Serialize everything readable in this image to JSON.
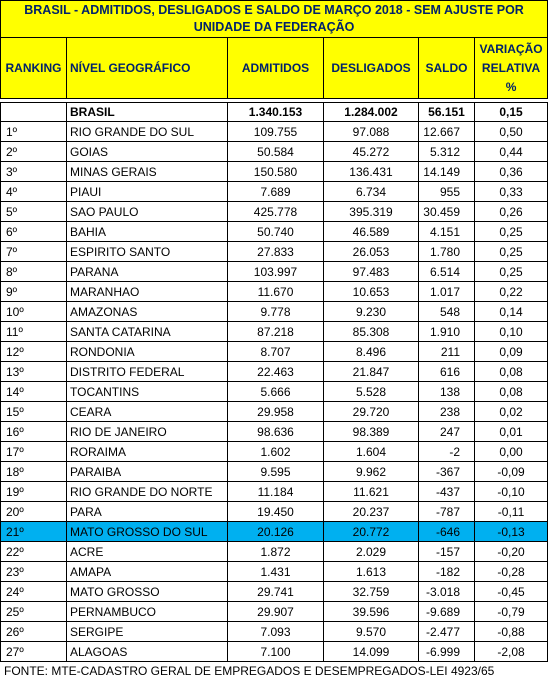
{
  "title": "BRASIL - ADMITIDOS, DESLIGADOS E SALDO DE MARÇO 2018 - SEM AJUSTE       POR UNIDADE DA FEDERAÇÃO",
  "headers": {
    "ranking": "RANKING",
    "nivel": "NÍVEL GEOGRÁFICO",
    "admitidos": "ADMITIDOS",
    "desligados": "DESLIGADOS",
    "saldo": "SALDO",
    "variacao": "VARIAÇÃO RELATIVA %"
  },
  "brasil": {
    "rank": "",
    "name": "BRASIL",
    "admitidos": "1.340.153",
    "desligados": "1.284.002",
    "saldo": "56.151",
    "variacao": "0,15"
  },
  "rows": [
    {
      "rank": "1º",
      "name": "RIO GRANDE DO SUL",
      "admitidos": "109.755",
      "desligados": "97.088",
      "saldo": "12.667",
      "variacao": "0,50"
    },
    {
      "rank": "2º",
      "name": "GOIAS",
      "admitidos": "50.584",
      "desligados": "45.272",
      "saldo": "5.312",
      "variacao": "0,44"
    },
    {
      "rank": "3º",
      "name": "MINAS GERAIS",
      "admitidos": "150.580",
      "desligados": "136.431",
      "saldo": "14.149",
      "variacao": "0,36"
    },
    {
      "rank": "4º",
      "name": "PIAUI",
      "admitidos": "7.689",
      "desligados": "6.734",
      "saldo": "955",
      "variacao": "0,33"
    },
    {
      "rank": "5º",
      "name": "SAO PAULO",
      "admitidos": "425.778",
      "desligados": "395.319",
      "saldo": "30.459",
      "variacao": "0,26"
    },
    {
      "rank": "6º",
      "name": "BAHIA",
      "admitidos": "50.740",
      "desligados": "46.589",
      "saldo": "4.151",
      "variacao": "0,25"
    },
    {
      "rank": "7º",
      "name": "ESPIRITO SANTO",
      "admitidos": "27.833",
      "desligados": "26.053",
      "saldo": "1.780",
      "variacao": "0,25"
    },
    {
      "rank": "8º",
      "name": "PARANA",
      "admitidos": "103.997",
      "desligados": "97.483",
      "saldo": "6.514",
      "variacao": "0,25"
    },
    {
      "rank": "9º",
      "name": "MARANHAO",
      "admitidos": "11.670",
      "desligados": "10.653",
      "saldo": "1.017",
      "variacao": "0,22"
    },
    {
      "rank": "10º",
      "name": "AMAZONAS",
      "admitidos": "9.778",
      "desligados": "9.230",
      "saldo": "548",
      "variacao": "0,14"
    },
    {
      "rank": "11º",
      "name": "SANTA CATARINA",
      "admitidos": "87.218",
      "desligados": "85.308",
      "saldo": "1.910",
      "variacao": "0,10"
    },
    {
      "rank": "12º",
      "name": "RONDONIA",
      "admitidos": "8.707",
      "desligados": "8.496",
      "saldo": "211",
      "variacao": "0,09"
    },
    {
      "rank": "13º",
      "name": "DISTRITO FEDERAL",
      "admitidos": "22.463",
      "desligados": "21.847",
      "saldo": "616",
      "variacao": "0,08"
    },
    {
      "rank": "14º",
      "name": "TOCANTINS",
      "admitidos": "5.666",
      "desligados": "5.528",
      "saldo": "138",
      "variacao": "0,08"
    },
    {
      "rank": "15º",
      "name": "CEARA",
      "admitidos": "29.958",
      "desligados": "29.720",
      "saldo": "238",
      "variacao": "0,02"
    },
    {
      "rank": "16º",
      "name": "RIO DE JANEIRO",
      "admitidos": "98.636",
      "desligados": "98.389",
      "saldo": "247",
      "variacao": "0,01"
    },
    {
      "rank": "17º",
      "name": "RORAIMA",
      "admitidos": "1.602",
      "desligados": "1.604",
      "saldo": "-2",
      "variacao": "0,00"
    },
    {
      "rank": "18º",
      "name": "PARAIBA",
      "admitidos": "9.595",
      "desligados": "9.962",
      "saldo": "-367",
      "variacao": "-0,09"
    },
    {
      "rank": "19º",
      "name": "RIO GRANDE DO NORTE",
      "admitidos": "11.184",
      "desligados": "11.621",
      "saldo": "-437",
      "variacao": "-0,10"
    },
    {
      "rank": "20º",
      "name": "PARA",
      "admitidos": "19.450",
      "desligados": "20.237",
      "saldo": "-787",
      "variacao": "-0,11"
    },
    {
      "rank": "21º",
      "name": "MATO GROSSO DO SUL",
      "admitidos": "20.126",
      "desligados": "20.772",
      "saldo": "-646",
      "variacao": "-0,13",
      "highlight": true
    },
    {
      "rank": "22º",
      "name": "ACRE",
      "admitidos": "1.872",
      "desligados": "2.029",
      "saldo": "-157",
      "variacao": "-0,20"
    },
    {
      "rank": "23º",
      "name": "AMAPA",
      "admitidos": "1.431",
      "desligados": "1.613",
      "saldo": "-182",
      "variacao": "-0,28"
    },
    {
      "rank": "24º",
      "name": "MATO GROSSO",
      "admitidos": "29.741",
      "desligados": "32.759",
      "saldo": "-3.018",
      "variacao": "-0,45"
    },
    {
      "rank": "25º",
      "name": "PERNAMBUCO",
      "admitidos": "29.907",
      "desligados": "39.596",
      "saldo": "-9.689",
      "variacao": "-0,79"
    },
    {
      "rank": "26º",
      "name": "SERGIPE",
      "admitidos": "7.093",
      "desligados": "9.570",
      "saldo": "-2.477",
      "variacao": "-0,88"
    },
    {
      "rank": "27º",
      "name": "ALAGOAS",
      "admitidos": "7.100",
      "desligados": "14.099",
      "saldo": "-6.999",
      "variacao": "-2,08"
    }
  ],
  "colors": {
    "header_bg": "#ffff00",
    "header_text": "#00226b",
    "highlight_row": "#00b0f0"
  },
  "footnote": "FONTE: MTE-CADASTRO GERAL DE EMPREGADOS E DESEMPREGADOS-LEI 4923/65"
}
